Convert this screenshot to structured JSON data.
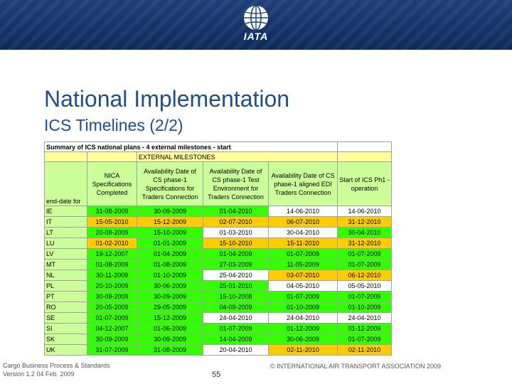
{
  "header": {
    "logo_text": "IATA"
  },
  "title": "National Implementation",
  "subtitle": "ICS Timelines (2/2)",
  "table": {
    "title": "Summary of ICS national plans - 4 external milestones - start",
    "group_header": "EXTERNAL MILESTONES",
    "columns": [
      "end-date for",
      "NICA Specifications Completed",
      "Availability Date of CS phase-1 Specifications for Traders Connection",
      "Availability Date of CS phase-1 Test Environment for Traders Connection",
      "Availability Date of CS phase-1 aligned EDI Traders Connection",
      "Start of ICS Ph1 - operation"
    ],
    "rows": [
      {
        "country": "IE",
        "cells": [
          "31-08-2009",
          "30-09-2009",
          "01-04-2010",
          "14-06-2010",
          "14-06-2010"
        ],
        "colors": [
          "g",
          "g",
          "g",
          "w",
          "w"
        ]
      },
      {
        "country": "IT",
        "cells": [
          "15-05-2010",
          "15-12-2009",
          "02-07-2010",
          "06-07-2010",
          "31-12-2010"
        ],
        "colors": [
          "y",
          "y",
          "y",
          "y",
          "y"
        ]
      },
      {
        "country": "LT",
        "cells": [
          "20-08-2009",
          "15-10-2009",
          "01-03-2010",
          "30-04-2010",
          "30-04-2010"
        ],
        "colors": [
          "g",
          "g",
          "w",
          "w",
          "g"
        ]
      },
      {
        "country": "LU",
        "cells": [
          "01-02-2010",
          "01-01-2009",
          "15-10-2010",
          "15-11-2010",
          "31-12-2010"
        ],
        "colors": [
          "y",
          "g",
          "y",
          "y",
          "y"
        ]
      },
      {
        "country": "LV",
        "cells": [
          "19-12-2007",
          "01-04-2009",
          "01-04-2009",
          "01-07-2009",
          "01-07-2009"
        ],
        "colors": [
          "g",
          "g",
          "g",
          "g",
          "g"
        ]
      },
      {
        "country": "MT",
        "cells": [
          "01-08-2009",
          "01-08-2009",
          "27-03-2009",
          "11-05-2009",
          "01-07-2009"
        ],
        "colors": [
          "g",
          "g",
          "g",
          "g",
          "g"
        ]
      },
      {
        "country": "NL",
        "cells": [
          "30-11-2009",
          "01-10-2009",
          "25-04-2010",
          "03-07-2010",
          "06-12-2010"
        ],
        "colors": [
          "g",
          "g",
          "w",
          "y",
          "y"
        ]
      },
      {
        "country": "PL",
        "cells": [
          "20-10-2009",
          "30-06-2009",
          "25-01-2010",
          "04-05-2010",
          "05-05-2010"
        ],
        "colors": [
          "g",
          "g",
          "g",
          "w",
          "w"
        ]
      },
      {
        "country": "PT",
        "cells": [
          "30-09-2009",
          "30-09-2009",
          "15-10-2008",
          "01-07-2009",
          "01-07-2009"
        ],
        "colors": [
          "g",
          "g",
          "g",
          "g",
          "g"
        ]
      },
      {
        "country": "RO",
        "cells": [
          "20-05-2009",
          "29-05-2009",
          "04-09-2009",
          "01-10-2009",
          "01-10-2009"
        ],
        "colors": [
          "g",
          "g",
          "g",
          "g",
          "g"
        ]
      },
      {
        "country": "SE",
        "cells": [
          "01-07-2009",
          "15-12-2009",
          "24-04-2010",
          "24-04-2010",
          "24-04-2010"
        ],
        "colors": [
          "g",
          "g",
          "w",
          "w",
          "w"
        ]
      },
      {
        "country": "SI",
        "cells": [
          "04-12-2007",
          "01-06-2009",
          "01-07-2009",
          "01-12-2009",
          "01-12-2009"
        ],
        "colors": [
          "g",
          "g",
          "g",
          "g",
          "g"
        ]
      },
      {
        "country": "SK",
        "cells": [
          "30-09-2009",
          "30-09-2009",
          "14-04-2009",
          "30-06-2009",
          "01-07-2009"
        ],
        "colors": [
          "g",
          "g",
          "g",
          "g",
          "g"
        ]
      },
      {
        "country": "UK",
        "cells": [
          "31-07-2009",
          "31-08-2009",
          "20-04-2010",
          "02-11-2010",
          "02-11-2010"
        ],
        "colors": [
          "g",
          "g",
          "w",
          "y",
          "y"
        ]
      }
    ]
  },
  "footer": {
    "left_line1": "Cargo Business Process & Standards",
    "left_line2": "Version 1.2 04 Feb. 2009",
    "page": "55",
    "right": "© INTERNATIONAL AIR TRANSPORT ASSOCIATION 2009"
  }
}
